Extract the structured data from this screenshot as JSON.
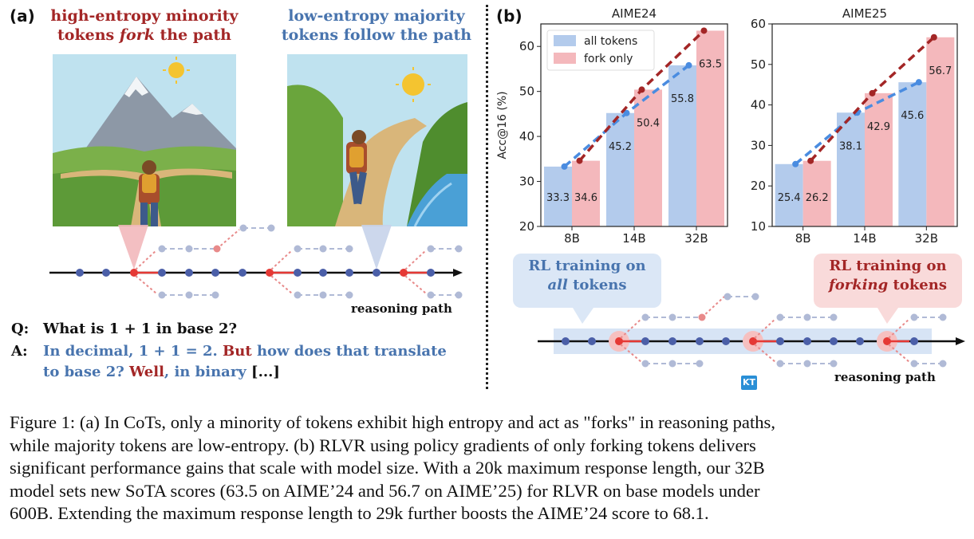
{
  "panel_a": {
    "label": "(a)",
    "headline_left": {
      "line1": "high-entropy minority",
      "line2_pre": "tokens ",
      "line2_em": "fork",
      "line2_post": " the path"
    },
    "headline_right": {
      "line1": "low-entropy majority",
      "line2": "tokens follow the path"
    },
    "path_label": "reasoning path",
    "question": {
      "prefix": "Q:",
      "text": "What is 1 + 1 in base 2?"
    },
    "answer": {
      "prefix": "A:",
      "line1_blue": "In decimal, 1 + 1 = 2.",
      "line1_red": "But",
      "line1_blue2": "how does that translate",
      "line2_blue": "to base 2?",
      "line2_red": "Well",
      "line2_blue2": ", in binary",
      "line2_black": "[...]"
    }
  },
  "panel_b": {
    "label": "(b)",
    "bubble_all": {
      "line1": "RL training on",
      "line2": "all",
      "line2_post": " tokens"
    },
    "bubble_fork": {
      "line1": "RL training on",
      "line2": "forking",
      "line2_post": " tokens"
    },
    "path_label": "reasoning path",
    "badge": "KT"
  },
  "chart_data": [
    {
      "type": "bar",
      "title": "AIME24",
      "ylabel": "Acc@16 (%)",
      "categories": [
        "8B",
        "14B",
        "32B"
      ],
      "ylim": [
        20,
        65
      ],
      "yticks": [
        20,
        30,
        40,
        50,
        60
      ],
      "series": [
        {
          "name": "all tokens",
          "values": [
            33.3,
            45.2,
            55.8
          ],
          "color": "#b3cbec"
        },
        {
          "name": "fork only",
          "values": [
            34.6,
            50.4,
            63.5
          ],
          "color": "#f4b8bc"
        }
      ],
      "legend": "top-left",
      "trend_colors": {
        "all tokens": "#4a8ce0",
        "fork only": "#a32626"
      }
    },
    {
      "type": "bar",
      "title": "AIME25",
      "ylabel": "",
      "categories": [
        "8B",
        "14B",
        "32B"
      ],
      "ylim": [
        10,
        60
      ],
      "yticks": [
        10,
        20,
        30,
        40,
        50,
        60
      ],
      "series": [
        {
          "name": "all tokens",
          "values": [
            25.4,
            38.1,
            45.6
          ],
          "color": "#b3cbec"
        },
        {
          "name": "fork only",
          "values": [
            26.2,
            42.9,
            56.7
          ],
          "color": "#f4b8bc"
        }
      ],
      "trend_colors": {
        "all tokens": "#4a8ce0",
        "fork only": "#a32626"
      }
    }
  ],
  "caption": {
    "lines": [
      "Figure 1: (a) In CoTs, only a minority of tokens exhibit high entropy and act as \"forks\" in reasoning paths,",
      "while majority tokens are low-entropy. (b) RLVR using policy gradients of only forking tokens delivers",
      "significant performance gains that scale with model size. With a 20k maximum response length, our 32B",
      "model sets new SoTA scores (63.5 on AIME’24 and 56.7 on AIME’25) for RLVR on base models under",
      "600B. Extending the maximum response length to 29k further boosts the AIME’24 score to 68.1."
    ]
  }
}
